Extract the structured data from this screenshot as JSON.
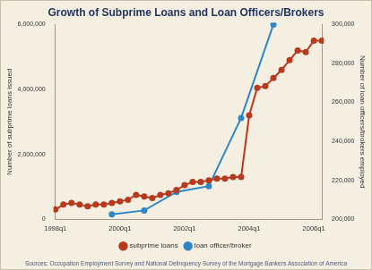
{
  "chart_data": {
    "type": "line",
    "title": "Growth of Subprime Loans and Loan Officers/Brokers",
    "source": "Sources: Occupation Employment Survey and National Delinquency Survey of the Mortgage Bankers Association of America",
    "y_label": "Number of subprime loans issued",
    "y2_label": "Number of loan officers/brokers employed",
    "categories": [
      "1998q1",
      null,
      null,
      null,
      null,
      null,
      null,
      null,
      "2000q1",
      null,
      null,
      null,
      null,
      null,
      null,
      null,
      "2002q1",
      null,
      null,
      null,
      null,
      null,
      null,
      null,
      "2004q1",
      null,
      null,
      null,
      null,
      null,
      null,
      null,
      "2006q1",
      null
    ],
    "series": [
      {
        "name": "subprime loans",
        "color": "#b83a1e",
        "marker": "circle",
        "line_style": "solid",
        "axis": "y",
        "values": [
          300000,
          450000,
          500000,
          450000,
          400000,
          450000,
          450000,
          500000,
          550000,
          600000,
          750000,
          700000,
          650000,
          750000,
          800000,
          900000,
          1050000,
          1150000,
          1150000,
          1200000,
          1250000,
          1250000,
          1300000,
          1300000,
          3200000,
          4050000,
          4100000,
          4350000,
          4600000,
          4900000,
          5200000,
          5150000,
          5500000,
          5500000
        ]
      },
      {
        "name": "loan officer/broker",
        "color": "#2e86c9",
        "marker": "circle",
        "line_style": "solid",
        "axis": "y2",
        "values": [
          null,
          null,
          null,
          null,
          null,
          null,
          null,
          202500,
          null,
          null,
          null,
          204500,
          null,
          null,
          null,
          214000,
          null,
          null,
          null,
          217000,
          null,
          null,
          null,
          252000,
          null,
          null,
          null,
          300000,
          null,
          null,
          null,
          null,
          null,
          null
        ]
      }
    ],
    "ylim": [
      0,
      6000000
    ],
    "yticks": [
      {
        "value": 0,
        "label": "0"
      },
      {
        "value": 2000000,
        "label": "2,000,000"
      },
      {
        "value": 4000000,
        "label": "4,000,000"
      },
      {
        "value": 6000000,
        "label": "6,000,000"
      }
    ],
    "y2lim": [
      200000,
      300000
    ],
    "y2ticks": [
      {
        "value": 200000,
        "label": "200,000"
      },
      {
        "value": 220000,
        "label": "220,000"
      },
      {
        "value": 240000,
        "label": "240,000"
      },
      {
        "value": 260000,
        "label": "260,000"
      },
      {
        "value": 280000,
        "label": "280,000"
      },
      {
        "value": 300000,
        "label": "300,000"
      }
    ],
    "grid": false,
    "legend": "bottom"
  }
}
